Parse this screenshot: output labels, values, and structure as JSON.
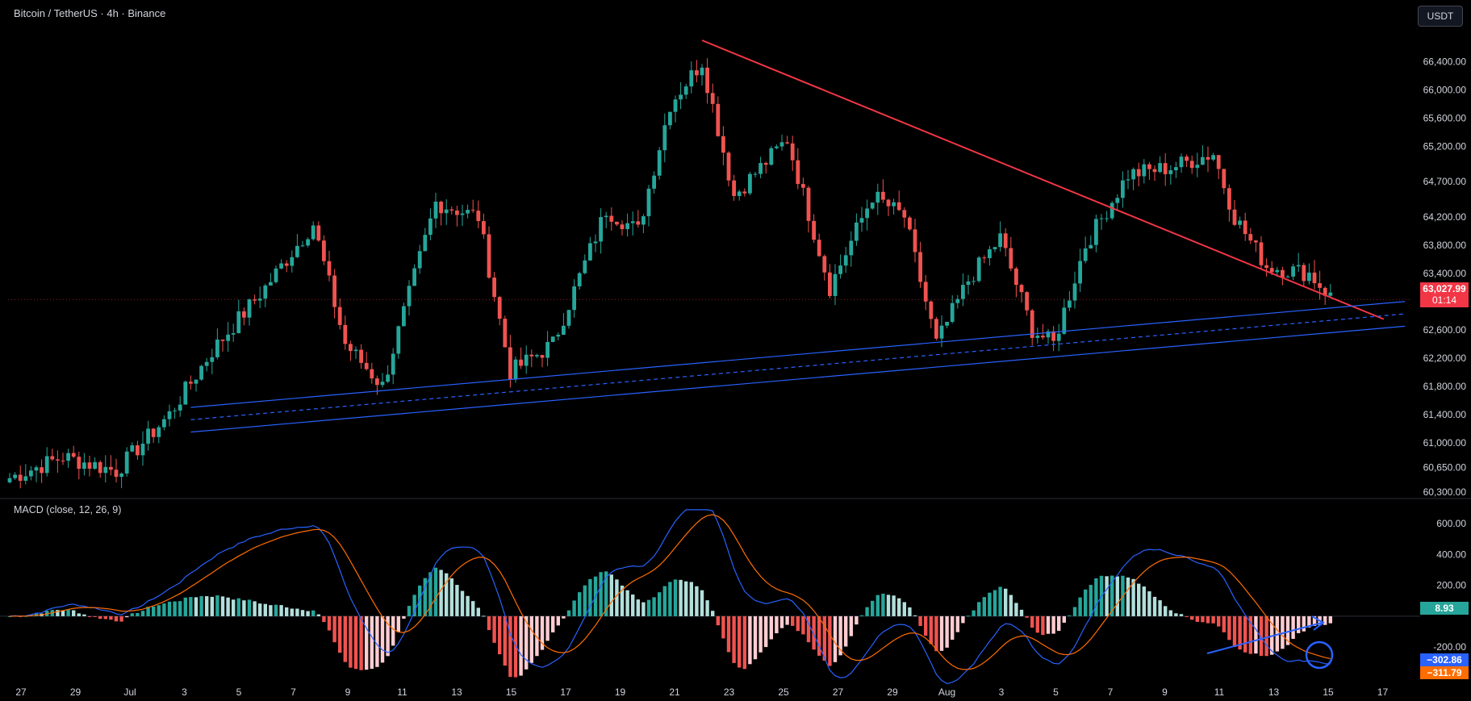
{
  "header": {
    "symbol": "Bitcoin / TetherUS · 4h · Binance",
    "currency_button": "USDT"
  },
  "price_tag": {
    "value": "63,027.99",
    "countdown": "01:14"
  },
  "macd": {
    "title": "MACD (close, 12, 26, 9)",
    "hist_label": "8.93",
    "macd_label": "−302.86",
    "signal_label": "−311.79"
  },
  "colors": {
    "up": "#26a69a",
    "down": "#ef5350",
    "up_light": "#b2dfdb",
    "down_light": "#ffcdd2",
    "macd_line": "#2962ff",
    "signal_line": "#ff6d00",
    "trend_red": "#f23645",
    "channel_blue": "#2962ff",
    "price_tag": "#f23645"
  },
  "chart_data": [
    {
      "type": "candlestick",
      "title": "Bitcoin / TetherUS · 4h · Binance",
      "y_axis_labels": [
        "66,400.00",
        "66,000.00",
        "65,600.00",
        "65,200.00",
        "64,700.00",
        "64,200.00",
        "63,800.00",
        "63,400.00",
        "62,600.00",
        "62,200.00",
        "61,800.00",
        "61,400.00",
        "61,000.00",
        "60,650.00",
        "60,300.00"
      ],
      "x_axis_labels": [
        "27",
        "29",
        "Jul",
        "3",
        "5",
        "7",
        "9",
        "11",
        "13",
        "15",
        "17",
        "19",
        "21",
        "23",
        "25",
        "27",
        "29",
        "Aug",
        "3",
        "5",
        "7",
        "9",
        "11",
        "13",
        "15",
        "17"
      ],
      "ylim": [
        60300,
        66700
      ],
      "current_price": 63027.99,
      "anchors": [
        {
          "bar": 0,
          "price": 60500
        },
        {
          "bar": 10,
          "price": 60800
        },
        {
          "bar": 20,
          "price": 60600
        },
        {
          "bar": 30,
          "price": 61400
        },
        {
          "bar": 38,
          "price": 62300
        },
        {
          "bar": 48,
          "price": 63200
        },
        {
          "bar": 57,
          "price": 64100
        },
        {
          "bar": 63,
          "price": 62400
        },
        {
          "bar": 70,
          "price": 61800
        },
        {
          "bar": 80,
          "price": 64400
        },
        {
          "bar": 88,
          "price": 64200
        },
        {
          "bar": 94,
          "price": 62000
        },
        {
          "bar": 102,
          "price": 62400
        },
        {
          "bar": 112,
          "price": 64300
        },
        {
          "bar": 118,
          "price": 64000
        },
        {
          "bar": 124,
          "price": 65800
        },
        {
          "bar": 130,
          "price": 66400
        },
        {
          "bar": 136,
          "price": 64500
        },
        {
          "bar": 146,
          "price": 65300
        },
        {
          "bar": 154,
          "price": 63200
        },
        {
          "bar": 162,
          "price": 64500
        },
        {
          "bar": 168,
          "price": 64200
        },
        {
          "bar": 174,
          "price": 62400
        },
        {
          "bar": 180,
          "price": 63300
        },
        {
          "bar": 186,
          "price": 63900
        },
        {
          "bar": 192,
          "price": 62600
        },
        {
          "bar": 196,
          "price": 62400
        },
        {
          "bar": 202,
          "price": 63800
        },
        {
          "bar": 210,
          "price": 64800
        },
        {
          "bar": 218,
          "price": 64900
        },
        {
          "bar": 226,
          "price": 65100
        },
        {
          "bar": 230,
          "price": 64200
        },
        {
          "bar": 236,
          "price": 63500
        },
        {
          "bar": 244,
          "price": 63400
        },
        {
          "bar": 250,
          "price": 62900
        },
        {
          "bar": 256,
          "price": 63028
        }
      ],
      "bar_count": 257,
      "bar_spacing_note": "4h candles",
      "trendlines": [
        {
          "kind": "descending",
          "from": {
            "date_bar": 130,
            "price": 66700
          },
          "to": {
            "date_bar": 258,
            "price": 62750
          }
        },
        {
          "kind": "channel-upper",
          "from": {
            "date_bar": 34,
            "price": 61500
          },
          "to": {
            "date_bar": 262,
            "price": 63000
          }
        },
        {
          "kind": "channel-lower",
          "from": {
            "date_bar": 34,
            "price": 61150
          },
          "to": {
            "date_bar": 262,
            "price": 62650
          }
        },
        {
          "kind": "channel-mid",
          "from": {
            "date_bar": 34,
            "price": 61325
          },
          "to": {
            "date_bar": 262,
            "price": 62825
          }
        }
      ]
    },
    {
      "type": "macd",
      "title": "MACD (close, 12, 26, 9)",
      "y_axis_labels": [
        "600.00",
        "400.00",
        "200.00",
        "-200.00"
      ],
      "ylim": [
        -450,
        700
      ],
      "current": {
        "histogram": 8.93,
        "macd": -302.86,
        "signal": -311.79
      }
    }
  ]
}
